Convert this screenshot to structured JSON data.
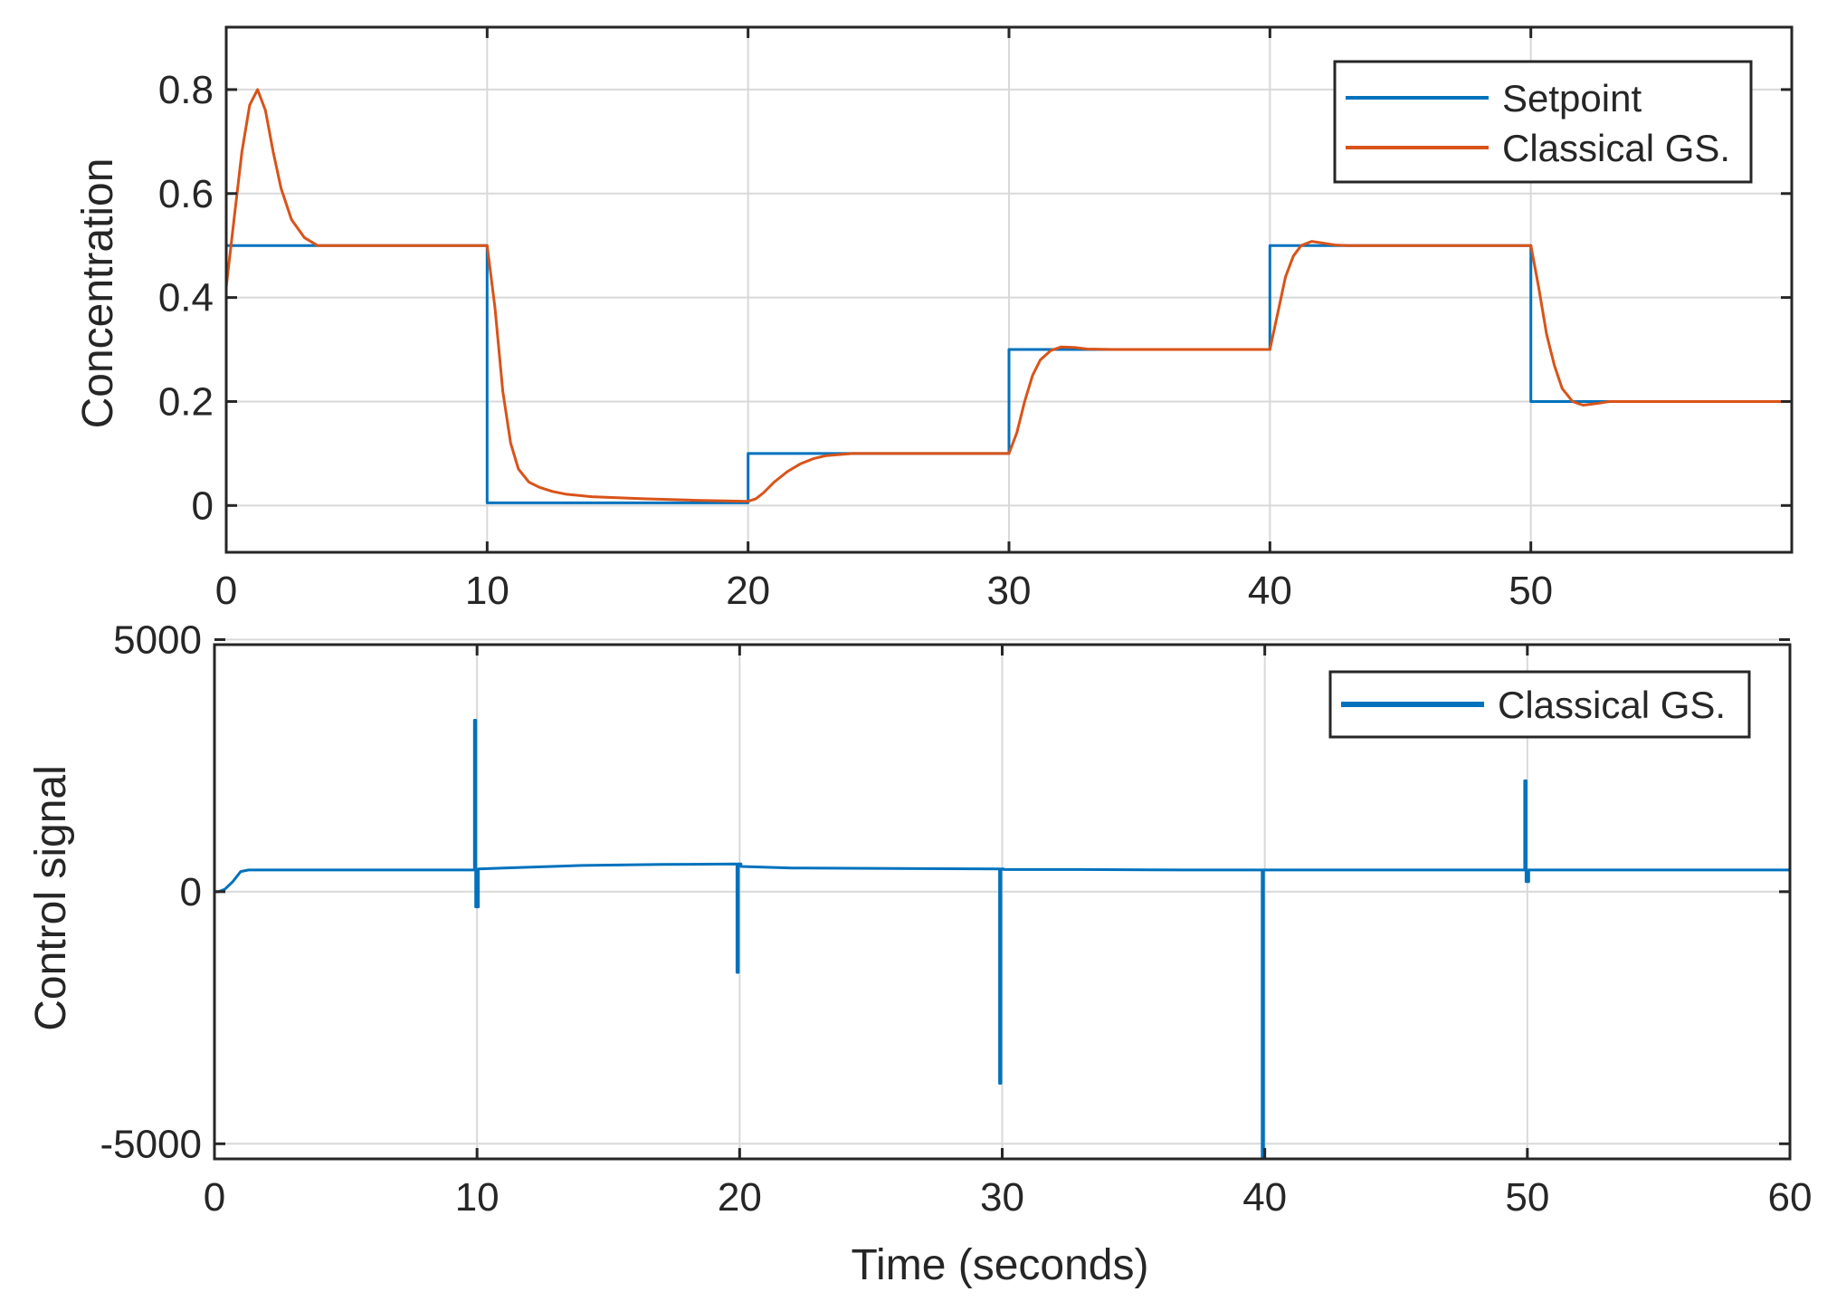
{
  "chart_data": [
    {
      "type": "line",
      "title": "",
      "xlabel": "",
      "ylabel": "Concentration",
      "xlim": [
        0,
        60
      ],
      "ylim": [
        -0.09,
        0.92
      ],
      "xticks": [
        0,
        10,
        20,
        30,
        40,
        50
      ],
      "xtick_labels": [
        "0",
        "10",
        "20",
        "30",
        "40",
        "50"
      ],
      "yticks": [
        0,
        0.2,
        0.4,
        0.6,
        0.8
      ],
      "ytick_labels": [
        "0",
        "0.2",
        "0.4",
        "0.6",
        "0.8"
      ],
      "grid": true,
      "legend": "top-right",
      "series": [
        {
          "name": "Setpoint",
          "color": "#0072BD",
          "x": [
            0,
            10,
            10,
            20,
            20,
            30,
            30,
            40,
            40,
            50,
            50,
            60
          ],
          "y": [
            0.5,
            0.5,
            0.005,
            0.005,
            0.1,
            0.1,
            0.3,
            0.3,
            0.5,
            0.5,
            0.2,
            0.2
          ]
        },
        {
          "name": "Classical GS.",
          "color": "#D95319",
          "x": [
            0,
            0.3,
            0.6,
            0.9,
            1.2,
            1.5,
            1.8,
            2.1,
            2.5,
            3.0,
            3.5,
            4.5,
            10,
            10.3,
            10.6,
            10.9,
            11.2,
            11.6,
            12.0,
            12.5,
            13.0,
            14,
            16,
            18,
            20,
            20.3,
            20.6,
            21,
            21.5,
            22,
            22.5,
            23,
            24,
            30,
            30.3,
            30.6,
            30.9,
            31.2,
            31.6,
            32,
            32.5,
            33,
            34,
            40,
            40.3,
            40.6,
            40.9,
            41.2,
            41.6,
            42,
            42.5,
            43,
            44,
            50,
            50.3,
            50.6,
            50.9,
            51.2,
            51.6,
            52,
            52.5,
            53,
            54,
            60
          ],
          "y": [
            0.42,
            0.55,
            0.68,
            0.77,
            0.8,
            0.76,
            0.68,
            0.61,
            0.55,
            0.515,
            0.5,
            0.5,
            0.5,
            0.38,
            0.22,
            0.12,
            0.07,
            0.045,
            0.035,
            0.027,
            0.022,
            0.017,
            0.013,
            0.01,
            0.008,
            0.013,
            0.025,
            0.045,
            0.065,
            0.08,
            0.09,
            0.096,
            0.1,
            0.1,
            0.14,
            0.2,
            0.25,
            0.28,
            0.298,
            0.305,
            0.304,
            0.301,
            0.3,
            0.3,
            0.37,
            0.44,
            0.48,
            0.5,
            0.508,
            0.505,
            0.501,
            0.5,
            0.5,
            0.5,
            0.42,
            0.33,
            0.27,
            0.225,
            0.2,
            0.193,
            0.196,
            0.2,
            0.2,
            0.2
          ]
        }
      ]
    },
    {
      "type": "line",
      "title": "",
      "xlabel": "Time (seconds)",
      "ylabel": "Control signal",
      "xlim": [
        0,
        60
      ],
      "ylim": [
        -5300,
        4900
      ],
      "xticks": [
        0,
        10,
        20,
        30,
        40,
        50,
        60
      ],
      "xtick_labels": [
        "0",
        "10",
        "20",
        "30",
        "40",
        "50",
        "60"
      ],
      "yticks": [
        -5000,
        0,
        5000
      ],
      "ytick_labels": [
        "-5000",
        "0",
        "5000"
      ],
      "grid": true,
      "legend": "top-right",
      "series": [
        {
          "name": "Classical GS.",
          "color": "#0072BD",
          "x": [
            0,
            0,
            0.15,
            0.4,
            0.7,
            1.0,
            1.3,
            9.9,
            9.9,
            9.95,
            9.95,
            10.05,
            10.05,
            11,
            14,
            17,
            19.9,
            19.9,
            19.95,
            19.95,
            20.05,
            20.05,
            22,
            26,
            29.9,
            29.9,
            29.95,
            29.95,
            30.05,
            30.05,
            33,
            37,
            39.9,
            39.9,
            39.95,
            39.95,
            40.05,
            40.05,
            43,
            47,
            49.9,
            49.9,
            49.95,
            49.95,
            50.05,
            50.05,
            55,
            60
          ],
          "y": [
            -2300,
            0,
            0,
            50,
            200,
            400,
            430,
            430,
            3400,
            3400,
            -300,
            -300,
            450,
            470,
            520,
            540,
            550,
            -1600,
            -1600,
            550,
            550,
            500,
            470,
            460,
            450,
            -3800,
            -3800,
            450,
            450,
            440,
            440,
            430,
            430,
            -5300,
            -5300,
            430,
            430,
            430,
            430,
            430,
            430,
            2200,
            2200,
            200,
            200,
            430,
            430,
            430
          ]
        }
      ]
    }
  ]
}
